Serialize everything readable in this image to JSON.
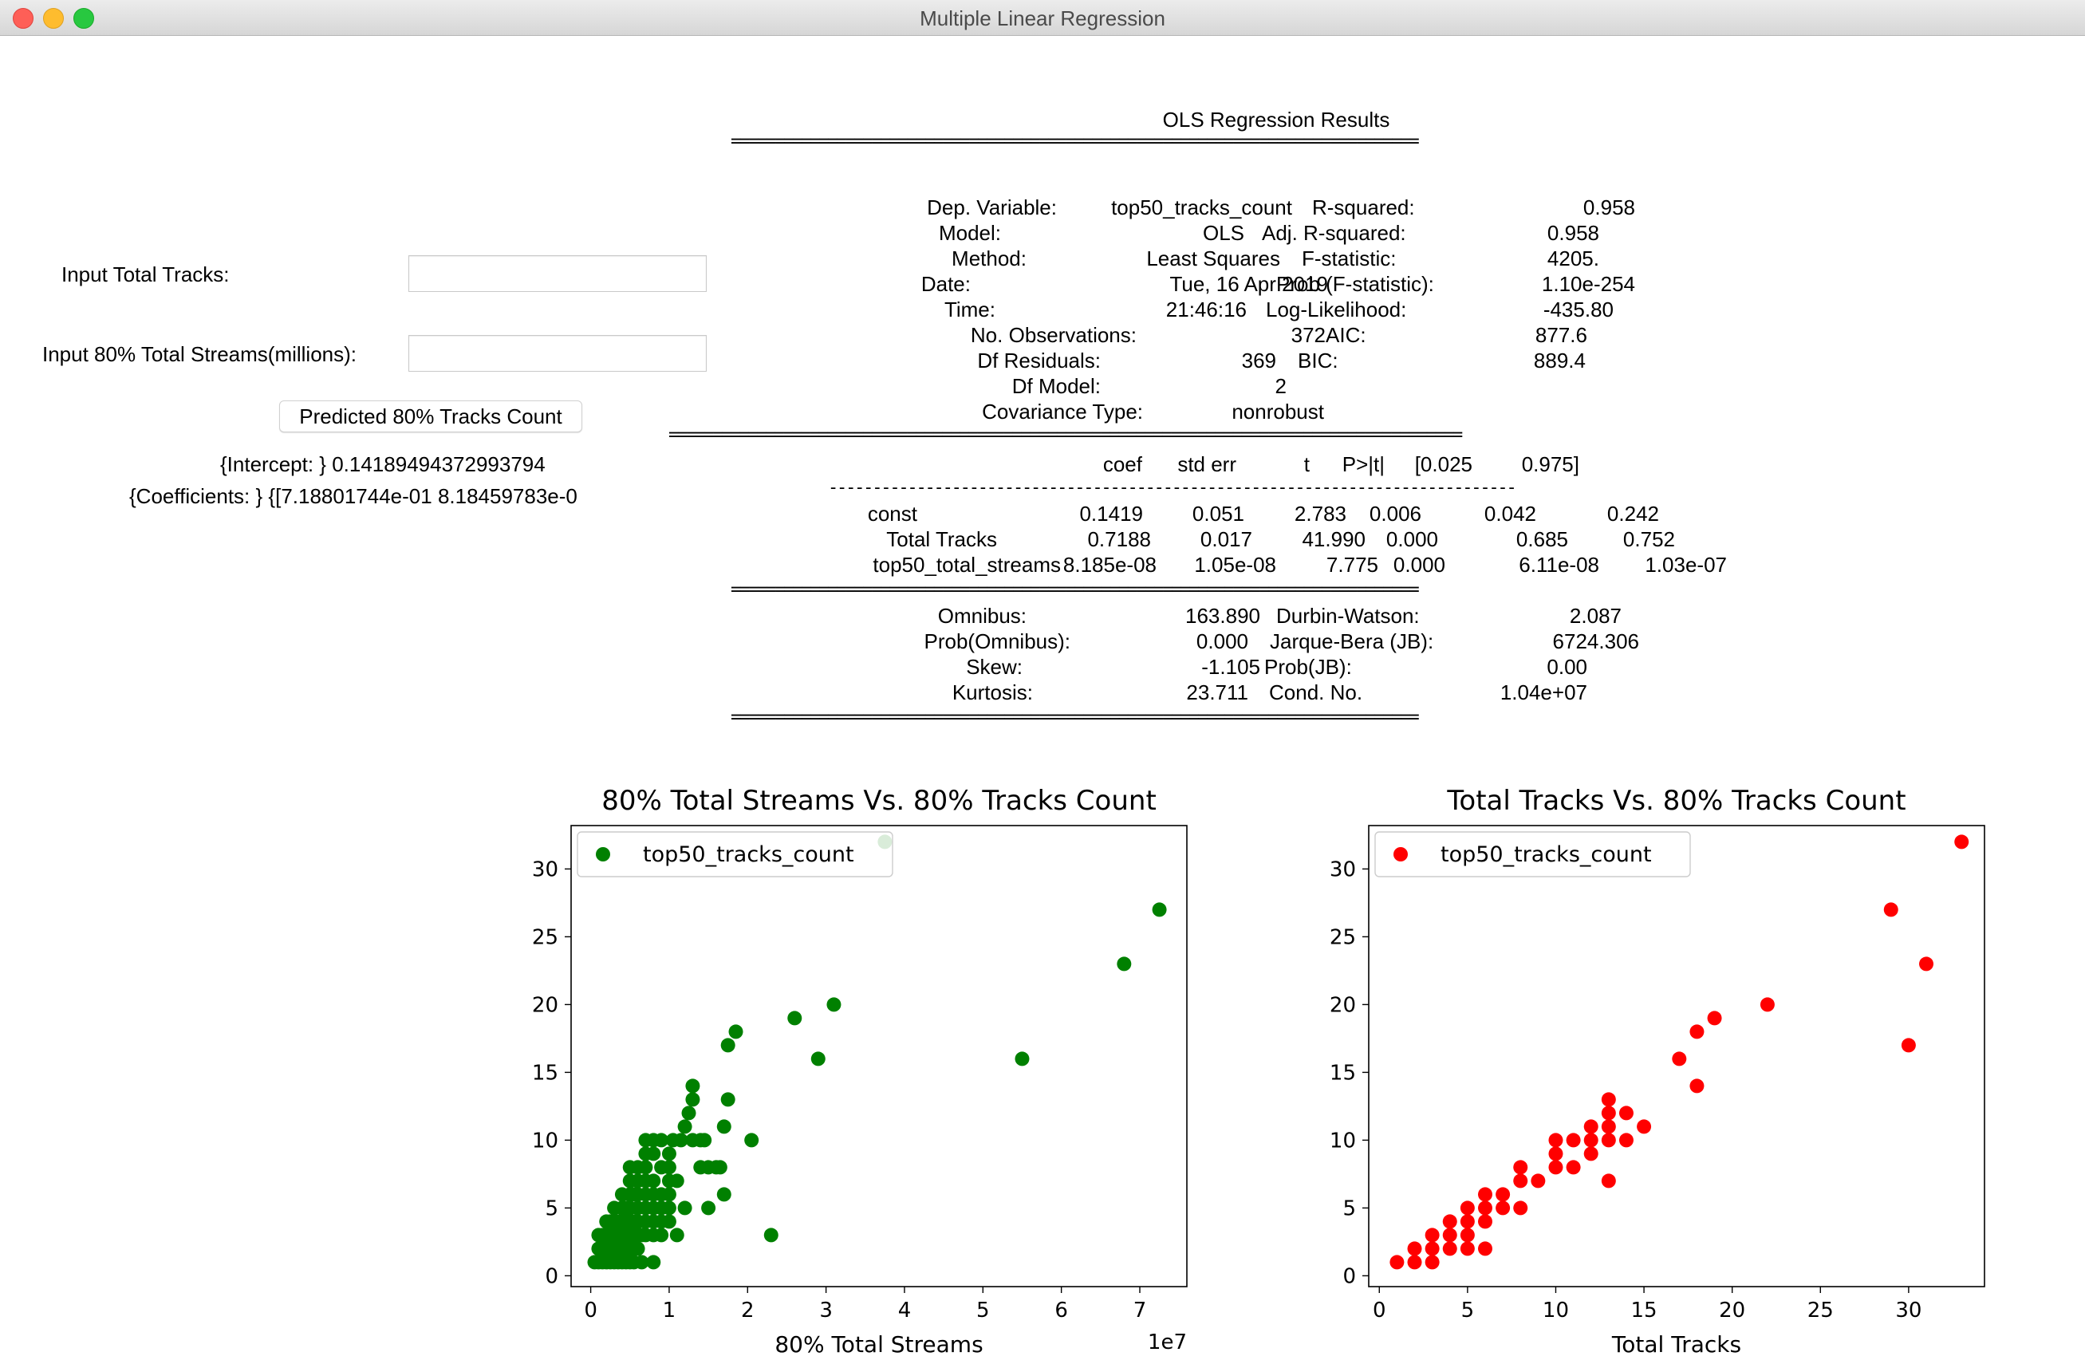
{
  "window": {
    "title": "Multiple Linear Regression"
  },
  "form": {
    "total_tracks_label": "Input Total Tracks:",
    "total_tracks_value": "",
    "streams_label": "Input 80% Total Streams(millions):",
    "streams_value": "",
    "predict_button": "Predicted 80% Tracks Count",
    "intercept_line": "{Intercept: } 0.14189494372993794",
    "coefficients_line": "{Coefficients: } {[7.18801744e-01 8.18459783e-0"
  },
  "ols": {
    "title": "OLS Regression Results",
    "sep_long": "==============================================================================",
    "sep_wide": "==========================================================================================",
    "sep_dash": "------------------------------------------------------------------------------",
    "summary": [
      [
        "Dep. Variable:",
        "top50_tracks_count",
        "R-squared:",
        "0.958"
      ],
      [
        "Model:",
        "OLS",
        "Adj. R-squared:",
        "0.958"
      ],
      [
        "Method:",
        "Least Squares",
        "F-statistic:",
        "4205."
      ],
      [
        "Date:",
        "Tue, 16 Apr 2019",
        "Prob (F-statistic):",
        "1.10e-254"
      ],
      [
        "Time:",
        "21:46:16",
        "Log-Likelihood:",
        "-435.80"
      ],
      [
        "No. Observations:",
        "372",
        "AIC:",
        "877.6"
      ],
      [
        "Df Residuals:",
        "369",
        "BIC:",
        "889.4"
      ],
      [
        "Df Model:",
        "2",
        "",
        ""
      ],
      [
        "Covariance Type:",
        "nonrobust",
        "",
        ""
      ]
    ],
    "coef_header": [
      "coef",
      "std err",
      "t",
      "P>|t|",
      "[0.025",
      "0.975]"
    ],
    "coef_rows": [
      [
        "const",
        "0.1419",
        "0.051",
        "2.783",
        "0.006",
        "0.042",
        "0.242"
      ],
      [
        "Total Tracks",
        "0.7188",
        "0.017",
        "41.990",
        "0.000",
        "0.685",
        "0.752"
      ],
      [
        "top50_total_streams",
        "8.185e-08",
        "1.05e-08",
        "7.775",
        "0.000",
        "6.11e-08",
        "1.03e-07"
      ]
    ],
    "diagnostics": [
      [
        "Omnibus:",
        "163.890",
        "Durbin-Watson:",
        "2.087"
      ],
      [
        "Prob(Omnibus):",
        "0.000",
        "Jarque-Bera (JB):",
        "6724.306"
      ],
      [
        "Skew:",
        "-1.105",
        "Prob(JB):",
        "0.00"
      ],
      [
        "Kurtosis:",
        "23.711",
        "Cond. No.",
        "1.04e+07"
      ]
    ]
  },
  "chart_data": [
    {
      "type": "scatter",
      "title": "80% Total Streams Vs. 80% Tracks Count",
      "xlabel": "80% Total Streams",
      "x_offset_label": "1e7",
      "ylabel": "",
      "xlim": [
        -0.25,
        7.6
      ],
      "ylim": [
        -0.8,
        33.2
      ],
      "xticks": [
        0,
        1,
        2,
        3,
        4,
        5,
        6,
        7
      ],
      "yticks": [
        0,
        5,
        10,
        15,
        20,
        25,
        30
      ],
      "legend": "top-left",
      "series": [
        {
          "name": "top50_tracks_count",
          "color": "#008000",
          "points": [
            [
              0.05,
              1
            ],
            [
              0.1,
              1
            ],
            [
              0.15,
              1
            ],
            [
              0.2,
              1
            ],
            [
              0.25,
              1
            ],
            [
              0.3,
              1
            ],
            [
              0.35,
              1
            ],
            [
              0.4,
              1
            ],
            [
              0.45,
              1
            ],
            [
              0.5,
              1
            ],
            [
              0.55,
              1
            ],
            [
              0.65,
              1
            ],
            [
              0.8,
              1
            ],
            [
              0.1,
              2
            ],
            [
              0.15,
              2
            ],
            [
              0.2,
              2
            ],
            [
              0.25,
              2
            ],
            [
              0.3,
              2
            ],
            [
              0.35,
              2
            ],
            [
              0.4,
              2
            ],
            [
              0.45,
              2
            ],
            [
              0.5,
              2
            ],
            [
              0.55,
              2
            ],
            [
              0.6,
              2
            ],
            [
              0.1,
              3
            ],
            [
              0.15,
              3
            ],
            [
              0.2,
              3
            ],
            [
              0.25,
              3
            ],
            [
              0.3,
              3
            ],
            [
              0.35,
              3
            ],
            [
              0.4,
              3
            ],
            [
              0.45,
              3
            ],
            [
              0.5,
              3
            ],
            [
              0.55,
              3
            ],
            [
              0.6,
              3
            ],
            [
              0.65,
              3
            ],
            [
              0.7,
              3
            ],
            [
              0.8,
              3
            ],
            [
              0.9,
              3
            ],
            [
              1.1,
              3
            ],
            [
              2.3,
              3
            ],
            [
              0.2,
              4
            ],
            [
              0.25,
              4
            ],
            [
              0.3,
              4
            ],
            [
              0.35,
              4
            ],
            [
              0.4,
              4
            ],
            [
              0.45,
              4
            ],
            [
              0.5,
              4
            ],
            [
              0.55,
              4
            ],
            [
              0.6,
              4
            ],
            [
              0.7,
              4
            ],
            [
              0.8,
              4
            ],
            [
              0.9,
              4
            ],
            [
              1.0,
              4
            ],
            [
              0.3,
              5
            ],
            [
              0.4,
              5
            ],
            [
              0.45,
              5
            ],
            [
              0.5,
              5
            ],
            [
              0.6,
              5
            ],
            [
              0.7,
              5
            ],
            [
              0.8,
              5
            ],
            [
              0.9,
              5
            ],
            [
              1.0,
              5
            ],
            [
              1.2,
              5
            ],
            [
              1.5,
              5
            ],
            [
              0.4,
              6
            ],
            [
              0.5,
              6
            ],
            [
              0.55,
              6
            ],
            [
              0.6,
              6
            ],
            [
              0.7,
              6
            ],
            [
              0.8,
              6
            ],
            [
              0.9,
              6
            ],
            [
              1.0,
              6
            ],
            [
              1.7,
              6
            ],
            [
              0.5,
              7
            ],
            [
              0.6,
              7
            ],
            [
              0.7,
              7
            ],
            [
              0.8,
              7
            ],
            [
              1.0,
              7
            ],
            [
              1.1,
              7
            ],
            [
              0.5,
              8
            ],
            [
              0.6,
              8
            ],
            [
              0.7,
              8
            ],
            [
              0.9,
              8
            ],
            [
              1.0,
              8
            ],
            [
              1.4,
              8
            ],
            [
              1.5,
              8
            ],
            [
              1.6,
              8
            ],
            [
              1.65,
              8
            ],
            [
              0.7,
              9
            ],
            [
              0.8,
              9
            ],
            [
              1.0,
              9
            ],
            [
              0.7,
              10
            ],
            [
              0.8,
              10
            ],
            [
              0.9,
              10
            ],
            [
              1.05,
              10
            ],
            [
              1.15,
              10
            ],
            [
              1.3,
              10
            ],
            [
              1.4,
              10
            ],
            [
              1.45,
              10
            ],
            [
              2.05,
              10
            ],
            [
              1.2,
              11
            ],
            [
              1.7,
              11
            ],
            [
              1.25,
              12
            ],
            [
              1.3,
              13
            ],
            [
              1.75,
              13
            ],
            [
              1.3,
              14
            ],
            [
              2.9,
              16
            ],
            [
              5.5,
              16
            ],
            [
              1.75,
              17
            ],
            [
              1.85,
              18
            ],
            [
              2.6,
              19
            ],
            [
              3.1,
              20
            ],
            [
              6.8,
              23
            ],
            [
              7.25,
              27
            ],
            [
              3.75,
              32
            ]
          ]
        }
      ]
    },
    {
      "type": "scatter",
      "title": "Total Tracks Vs. 80% Tracks Count",
      "xlabel": "Total Tracks",
      "ylabel": "",
      "xlim": [
        -0.6,
        34.3
      ],
      "ylim": [
        -0.8,
        33.2
      ],
      "xticks": [
        0,
        5,
        10,
        15,
        20,
        25,
        30
      ],
      "yticks": [
        0,
        5,
        10,
        15,
        20,
        25,
        30
      ],
      "legend": "top-left",
      "series": [
        {
          "name": "top50_tracks_count",
          "color": "#ff0000",
          "points": [
            [
              1,
              1
            ],
            [
              2,
              1
            ],
            [
              3,
              1
            ],
            [
              2,
              2
            ],
            [
              3,
              2
            ],
            [
              4,
              2
            ],
            [
              5,
              2
            ],
            [
              6,
              2
            ],
            [
              3,
              3
            ],
            [
              4,
              3
            ],
            [
              5,
              3
            ],
            [
              4,
              4
            ],
            [
              5,
              4
            ],
            [
              6,
              4
            ],
            [
              5,
              5
            ],
            [
              6,
              5
            ],
            [
              7,
              5
            ],
            [
              8,
              5
            ],
            [
              6,
              6
            ],
            [
              7,
              6
            ],
            [
              8,
              7
            ],
            [
              9,
              7
            ],
            [
              13,
              7
            ],
            [
              8,
              8
            ],
            [
              10,
              8
            ],
            [
              11,
              8
            ],
            [
              10,
              9
            ],
            [
              12,
              9
            ],
            [
              10,
              10
            ],
            [
              11,
              10
            ],
            [
              12,
              10
            ],
            [
              13,
              10
            ],
            [
              14,
              10
            ],
            [
              12,
              11
            ],
            [
              13,
              11
            ],
            [
              15,
              11
            ],
            [
              13,
              12
            ],
            [
              14,
              12
            ],
            [
              13,
              13
            ],
            [
              18,
              14
            ],
            [
              17,
              16
            ],
            [
              30,
              17
            ],
            [
              18,
              18
            ],
            [
              19,
              19
            ],
            [
              22,
              20
            ],
            [
              31,
              23
            ],
            [
              29,
              27
            ],
            [
              33,
              32
            ]
          ]
        }
      ]
    }
  ]
}
